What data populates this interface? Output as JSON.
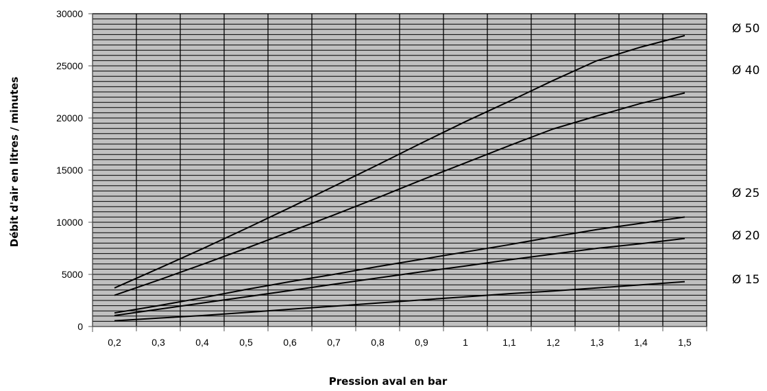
{
  "chart_data": {
    "type": "line",
    "title": "",
    "xlabel": "Pression aval en bar",
    "ylabel": "Débit d'air en litres / minutes",
    "x": [
      "0,2",
      "0,3",
      "0,4",
      "0,5",
      "0,6",
      "0,7",
      "0,8",
      "0,9",
      "1",
      "1,1",
      "1,2",
      "1,3",
      "1,4",
      "1,5"
    ],
    "x_values": [
      0.2,
      0.3,
      0.4,
      0.5,
      0.6,
      0.7,
      0.8,
      0.9,
      1.0,
      1.1,
      1.2,
      1.3,
      1.4,
      1.5
    ],
    "ylim": [
      0,
      30000
    ],
    "y_ticks": [
      0,
      5000,
      10000,
      15000,
      20000,
      25000,
      30000
    ],
    "y_minor_step": 500,
    "grid": true,
    "plot_background": "#c0c0c0",
    "line_color": "#000000",
    "legend": "right, labels aligned with line ends",
    "series": [
      {
        "name": "Ø 50",
        "values": [
          3700,
          5550,
          7450,
          9400,
          11400,
          13450,
          15500,
          17600,
          19650,
          21600,
          23600,
          25500,
          26800,
          27900
        ]
      },
      {
        "name": "Ø 40",
        "values": [
          3000,
          4450,
          5950,
          7500,
          9100,
          10700,
          12350,
          14050,
          15700,
          17350,
          18950,
          20200,
          21400,
          22400
        ]
      },
      {
        "name": "Ø 25",
        "values": [
          1300,
          2000,
          2750,
          3550,
          4300,
          5000,
          5750,
          6450,
          7150,
          7850,
          8600,
          9300,
          9900,
          10500
        ]
      },
      {
        "name": "Ø 20",
        "values": [
          1050,
          1650,
          2250,
          2850,
          3450,
          4050,
          4650,
          5250,
          5800,
          6400,
          6950,
          7500,
          7950,
          8450
        ]
      },
      {
        "name": "Ø 15",
        "values": [
          550,
          800,
          1050,
          1350,
          1650,
          1950,
          2250,
          2550,
          2850,
          3150,
          3400,
          3700,
          4000,
          4300
        ]
      }
    ]
  }
}
